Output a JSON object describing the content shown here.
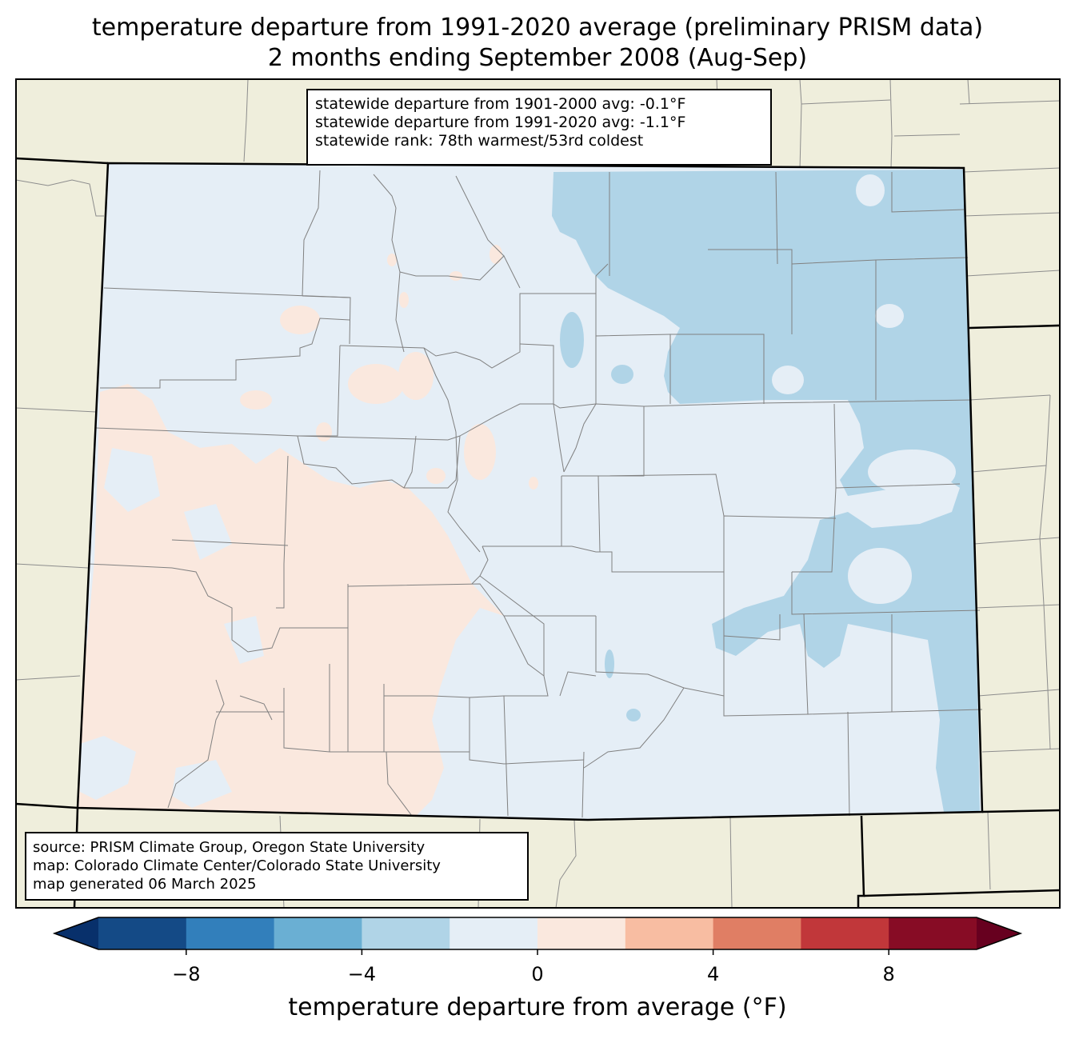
{
  "title": {
    "line1": "temperature departure from 1991-2020 average (preliminary PRISM data)",
    "line2": "2 months ending September 2008 (Aug-Sep)"
  },
  "stats_box": {
    "line1": "statewide departure from 1901-2000 avg: -0.1°F",
    "line2": "statewide departure from 1991-2020 avg: -1.1°F",
    "line3": "statewide rank: 78th warmest/53rd coldest"
  },
  "source_box": {
    "line1": "source: PRISM Climate Group, Oregon State University",
    "line2": "map: Colorado Climate Center/Colorado State University",
    "line3": "map generated 06 March 2025"
  },
  "colorbar": {
    "label": "temperature departure from average (°F)",
    "ticks": [
      "−8",
      "−4",
      "0",
      "4",
      "8"
    ],
    "tick_values": [
      -8,
      -4,
      0,
      4,
      8
    ],
    "min": -10,
    "max": 10,
    "bin_colors": [
      "#08306b",
      "#144a86",
      "#327fbb",
      "#6aafd3",
      "#b0d4e7",
      "#e5eef6",
      "#fae8de",
      "#f8bda2",
      "#e07e64",
      "#c1373a",
      "#870c25",
      "#67001f"
    ]
  },
  "colors": {
    "land_background": "#efeedc",
    "state_border": "#000000",
    "county_lines": "#808080",
    "near_normal_cool": "#e5eef6",
    "cool": "#b0d4e7",
    "warm": "#fae8de"
  }
}
